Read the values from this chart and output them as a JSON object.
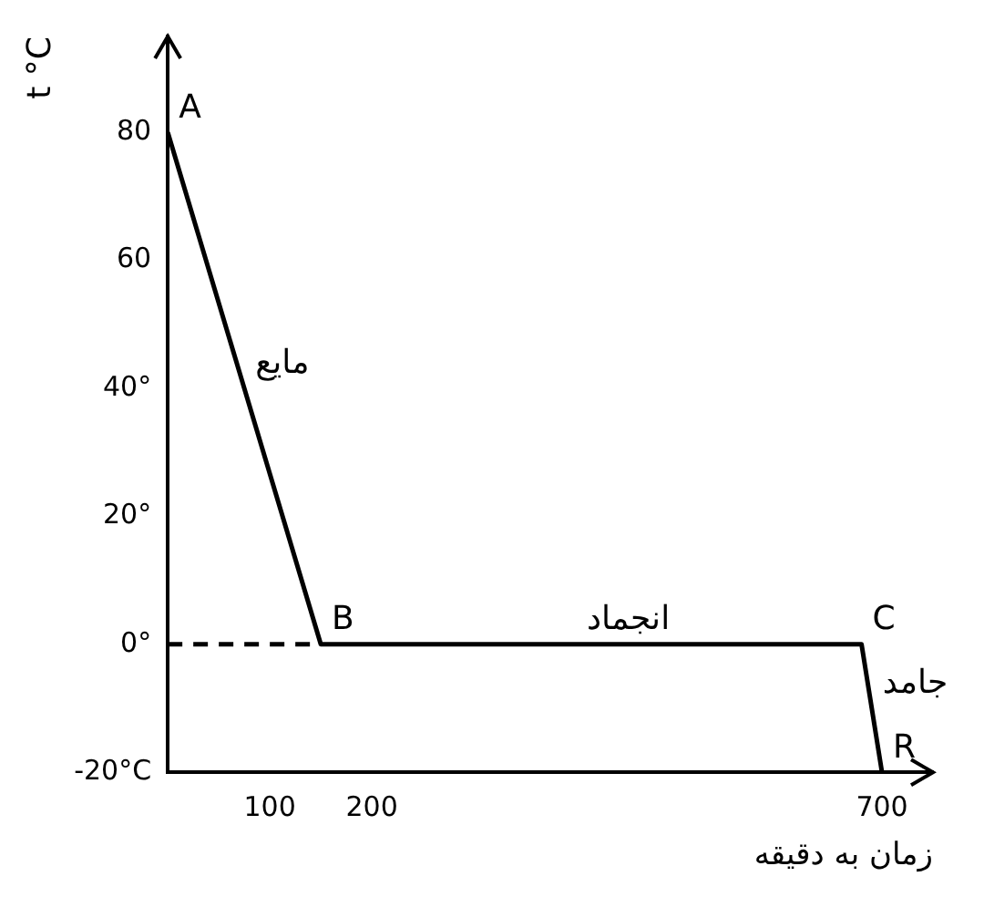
{
  "chart_data": {
    "type": "line",
    "ylabel": "t °C",
    "xlabel": "زمان به دقیقه",
    "xlim": [
      0,
      750
    ],
    "xticks": [
      100,
      200,
      700
    ],
    "ylim": [
      -20,
      95
    ],
    "yticks": [
      {
        "value": -20,
        "label": "-20°C"
      },
      {
        "value": 0,
        "label": "0°"
      },
      {
        "value": 20,
        "label": "20°"
      },
      {
        "value": 40,
        "label": "40°"
      },
      60,
      80
    ],
    "series": [
      {
        "color": "#000000",
        "x": [
          0,
          150,
          680,
          700
        ],
        "values": [
          80,
          0,
          0,
          -20
        ],
        "line_style": "solid"
      },
      {
        "color": "#000000",
        "x": [
          0,
          150
        ],
        "values": [
          0,
          0
        ],
        "line_style": "dashed"
      }
    ],
    "annotations": [
      {
        "text": "A",
        "x": 0,
        "y": 80
      },
      {
        "text": "B",
        "x": 150,
        "y": 0
      },
      {
        "text": "C",
        "x": 680,
        "y": 0
      },
      {
        "text": "R",
        "x": 700,
        "y": -20
      },
      {
        "text": "مایع",
        "x": 75,
        "y": 40
      },
      {
        "text": "انجماد",
        "x": 400,
        "y": 0
      },
      {
        "text": "جامد",
        "x": 690,
        "y": -10
      }
    ],
    "grid": false,
    "legend": false,
    "marker": "none"
  }
}
